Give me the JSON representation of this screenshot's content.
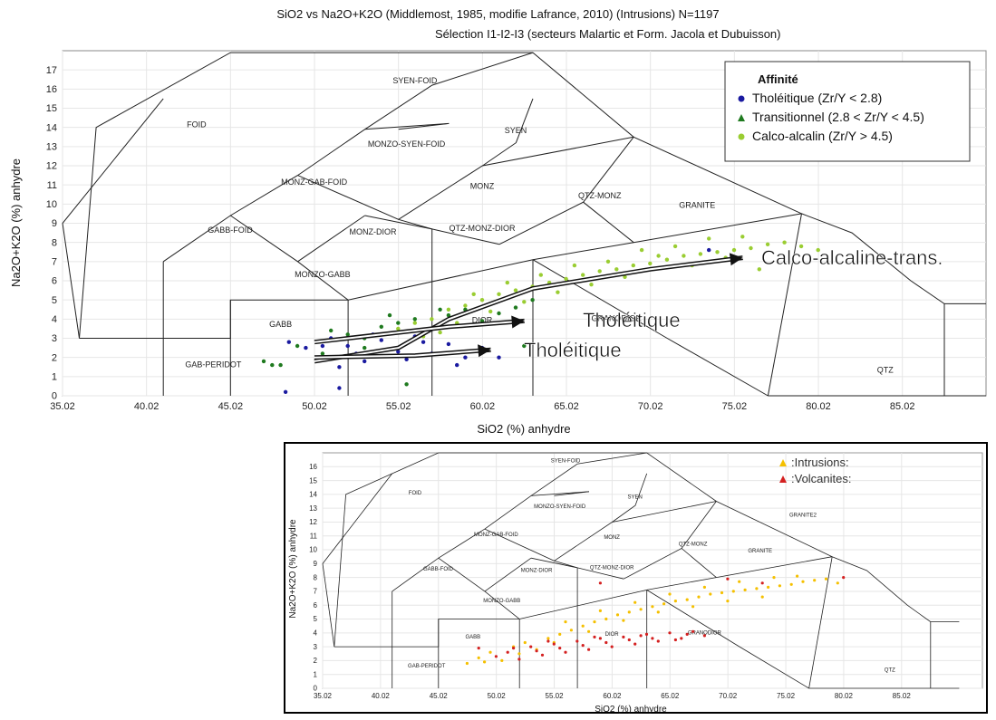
{
  "header": {
    "title": "SiO2 vs Na2O+K2O (Middlemost, 1985, modifie Lafrance, 2010) (Intrusions) N=1197",
    "subtitle": "Sélection I1-I2-I3 (secteurs Malartic et Form. Jacola et Dubuisson)"
  },
  "colors": {
    "tholeiitic": "#1a1aa0",
    "transitional": "#1f7a1f",
    "calc_alkaline": "#9acd32",
    "intrusions": "#f5c000",
    "volcanites": "#d42020"
  },
  "chart_data": [
    {
      "type": "scatter",
      "title": "SiO2 vs Na2O+K2O (Middlemost, 1985, modifie Lafrance, 2010) (Intrusions) N=1197",
      "subtitle": "Sélection I1-I2-I3 (secteurs Malartic et Form. Jacola et Dubuisson)",
      "xlabel": "SiO2 (%) anhydre",
      "ylabel": "Na2O+K2O (%) anhydre",
      "xlim": [
        35.02,
        90.0
      ],
      "ylim": [
        0,
        18
      ],
      "xticks": [
        "35.02",
        "40.02",
        "45.02",
        "50.02",
        "55.02",
        "60.02",
        "65.02",
        "70.02",
        "75.02",
        "80.02",
        "85.02"
      ],
      "yticks": [
        "0",
        "1",
        "2",
        "3",
        "4",
        "5",
        "6",
        "7",
        "8",
        "9",
        "10",
        "11",
        "12",
        "13",
        "14",
        "15",
        "16",
        "17"
      ],
      "legend": {
        "title": "Affinité",
        "position": "top-right",
        "entries": [
          "Tholéitique (Zr/Y < 2.8)",
          "Transitionnel (2.8 < Zr/Y < 4.5)",
          "Calco-alcalin (Zr/Y > 4.5)"
        ]
      },
      "field_labels": [
        {
          "text": "FOID",
          "x": 43.0,
          "y": 14.0
        },
        {
          "text": "SYEN-FOID",
          "x": 56.0,
          "y": 16.3
        },
        {
          "text": "MONZO-SYEN-FOID",
          "x": 55.5,
          "y": 13.0
        },
        {
          "text": "SYEN",
          "x": 62.0,
          "y": 13.7
        },
        {
          "text": "MONZ-GAB-FOID",
          "x": 50.0,
          "y": 11.0
        },
        {
          "text": "MONZ",
          "x": 60.0,
          "y": 10.8
        },
        {
          "text": "QTZ-MONZ",
          "x": 67.0,
          "y": 10.3
        },
        {
          "text": "GRANITE2",
          "x": 76.5,
          "y": 12.4
        },
        {
          "text": "GRANITE",
          "x": 72.8,
          "y": 9.8
        },
        {
          "text": "GABB-FOID",
          "x": 45.0,
          "y": 8.5
        },
        {
          "text": "MONZ-DIOR",
          "x": 53.5,
          "y": 8.4
        },
        {
          "text": "QTZ-MONZ-DIOR",
          "x": 60.0,
          "y": 8.6
        },
        {
          "text": "MONZO-GABB",
          "x": 50.5,
          "y": 6.2
        },
        {
          "text": "GABB",
          "x": 48.0,
          "y": 3.6
        },
        {
          "text": "DIOR",
          "x": 60.0,
          "y": 3.8
        },
        {
          "text": "GRANODIOR",
          "x": 68.0,
          "y": 3.9
        },
        {
          "text": "GAB-PERIDOT",
          "x": 44.0,
          "y": 1.5
        },
        {
          "text": "QTZ",
          "x": 84.0,
          "y": 1.2
        }
      ],
      "annotations": [
        "Calco-alcaline-trans.",
        "Tholéitique",
        "Tholéitique"
      ],
      "series": [
        {
          "name": "Tholéitique (Zr/Y < 2.8)",
          "color": "#1a1aa0",
          "points": [
            [
              48.5,
              2.8
            ],
            [
              49.5,
              2.5
            ],
            [
              50.2,
              2.0
            ],
            [
              51.0,
              3.0
            ],
            [
              52.0,
              2.6
            ],
            [
              53.0,
              1.8
            ],
            [
              54.0,
              2.9
            ],
            [
              55.0,
              2.3
            ],
            [
              56.0,
              3.1
            ],
            [
              57.0,
              2.2
            ],
            [
              58.0,
              2.7
            ],
            [
              59.0,
              2.0
            ],
            [
              60.0,
              2.5
            ],
            [
              61.0,
              2.0
            ],
            [
              52.5,
              2.2
            ],
            [
              51.5,
              1.5
            ],
            [
              48.3,
              0.2
            ],
            [
              51.5,
              0.4
            ],
            [
              73.5,
              7.6
            ],
            [
              56.5,
              2.8
            ],
            [
              55.5,
              1.9
            ],
            [
              53.5,
              3.2
            ],
            [
              50.5,
              2.6
            ],
            [
              58.5,
              1.6
            ]
          ]
        },
        {
          "name": "Transitionnel (2.8 < Zr/Y < 4.5)",
          "color": "#1f7a1f",
          "points": [
            [
              47.0,
              1.8
            ],
            [
              48.0,
              1.6
            ],
            [
              49.0,
              2.6
            ],
            [
              50.5,
              2.2
            ],
            [
              51.0,
              3.4
            ],
            [
              52.0,
              3.2
            ],
            [
              53.0,
              3.0
            ],
            [
              54.0,
              3.6
            ],
            [
              55.0,
              3.8
            ],
            [
              56.0,
              4.0
            ],
            [
              57.0,
              3.5
            ],
            [
              58.0,
              4.2
            ],
            [
              59.0,
              4.5
            ],
            [
              60.0,
              3.9
            ],
            [
              61.0,
              4.3
            ],
            [
              62.0,
              4.6
            ],
            [
              63.0,
              5.0
            ],
            [
              62.5,
              2.6
            ],
            [
              55.5,
              0.6
            ],
            [
              53.0,
              2.5
            ],
            [
              57.5,
              4.5
            ],
            [
              60.5,
              4.8
            ],
            [
              47.5,
              1.6
            ],
            [
              54.5,
              4.2
            ]
          ]
        },
        {
          "name": "Calco-alcalin (Zr/Y > 4.5)",
          "color": "#9acd32",
          "points": [
            [
              55.0,
              3.5
            ],
            [
              56.0,
              3.8
            ],
            [
              57.0,
              4.0
            ],
            [
              58.0,
              4.5
            ],
            [
              59.0,
              4.7
            ],
            [
              60.0,
              5.0
            ],
            [
              61.0,
              5.3
            ],
            [
              62.0,
              5.5
            ],
            [
              63.0,
              5.7
            ],
            [
              64.0,
              5.9
            ],
            [
              65.0,
              6.1
            ],
            [
              66.0,
              6.3
            ],
            [
              67.0,
              6.5
            ],
            [
              68.0,
              6.6
            ],
            [
              69.0,
              6.8
            ],
            [
              70.0,
              6.9
            ],
            [
              71.0,
              7.1
            ],
            [
              72.0,
              7.3
            ],
            [
              73.0,
              7.4
            ],
            [
              74.0,
              7.5
            ],
            [
              75.0,
              7.6
            ],
            [
              76.0,
              7.7
            ],
            [
              77.0,
              7.9
            ],
            [
              78.0,
              8.0
            ],
            [
              79.0,
              7.8
            ],
            [
              80.0,
              7.6
            ],
            [
              76.5,
              6.6
            ],
            [
              74.5,
              7.2
            ],
            [
              72.5,
              6.8
            ],
            [
              70.5,
              7.3
            ],
            [
              68.5,
              6.2
            ],
            [
              66.5,
              5.8
            ],
            [
              64.5,
              5.4
            ],
            [
              62.5,
              4.9
            ],
            [
              60.5,
              4.4
            ],
            [
              58.5,
              3.8
            ],
            [
              57.5,
              3.3
            ],
            [
              56.5,
              3.1
            ],
            [
              71.5,
              7.8
            ],
            [
              67.5,
              7.0
            ],
            [
              63.5,
              6.3
            ],
            [
              61.5,
              5.9
            ],
            [
              59.5,
              5.3
            ],
            [
              75.5,
              8.3
            ],
            [
              73.5,
              8.2
            ],
            [
              69.5,
              7.6
            ],
            [
              65.5,
              6.8
            ]
          ]
        }
      ]
    },
    {
      "type": "scatter",
      "xlabel": "SiO2 (%) anhydre",
      "ylabel": "Na2O+K2O (%) anhydre",
      "xlim": [
        35.02,
        92.0
      ],
      "ylim": [
        0,
        17
      ],
      "xticks": [
        "35.02",
        "40.02",
        "45.02",
        "50.02",
        "55.02",
        "60.02",
        "65.02",
        "70.02",
        "75.02",
        "80.02",
        "85.02"
      ],
      "yticks": [
        "0",
        "1",
        "2",
        "3",
        "4",
        "5",
        "6",
        "7",
        "8",
        "9",
        "10",
        "11",
        "12",
        "13",
        "14",
        "15",
        "16"
      ],
      "legend": {
        "position": "top-right",
        "entries": [
          ":Intrusions:",
          ":Volcanites:"
        ]
      },
      "series": [
        {
          "name": ":Intrusions:",
          "color": "#f5c000",
          "points": [
            [
              47.5,
              1.8
            ],
            [
              48.5,
              2.2
            ],
            [
              49.5,
              2.6
            ],
            [
              50.5,
              2.0
            ],
            [
              51.5,
              3.0
            ],
            [
              52.5,
              3.3
            ],
            [
              53.5,
              2.8
            ],
            [
              54.5,
              3.6
            ],
            [
              55.5,
              3.9
            ],
            [
              56.5,
              4.2
            ],
            [
              57.5,
              4.5
            ],
            [
              58.5,
              4.8
            ],
            [
              59.5,
              5.0
            ],
            [
              60.5,
              5.3
            ],
            [
              61.5,
              5.5
            ],
            [
              62.5,
              5.7
            ],
            [
              63.5,
              5.9
            ],
            [
              64.5,
              6.1
            ],
            [
              65.5,
              6.3
            ],
            [
              66.5,
              6.4
            ],
            [
              67.5,
              6.6
            ],
            [
              68.5,
              6.8
            ],
            [
              69.5,
              6.9
            ],
            [
              70.5,
              7.0
            ],
            [
              71.5,
              7.1
            ],
            [
              72.5,
              7.2
            ],
            [
              73.5,
              7.3
            ],
            [
              74.5,
              7.4
            ],
            [
              75.5,
              7.5
            ],
            [
              76.5,
              7.7
            ],
            [
              77.5,
              7.8
            ],
            [
              78.5,
              7.9
            ],
            [
              79.5,
              7.6
            ],
            [
              73.0,
              6.6
            ],
            [
              70.0,
              6.3
            ],
            [
              67.0,
              5.9
            ],
            [
              64.0,
              5.5
            ],
            [
              61.0,
              4.9
            ],
            [
              58.0,
              4.1
            ],
            [
              55.0,
              3.3
            ],
            [
              52.0,
              2.5
            ],
            [
              49.0,
              1.9
            ],
            [
              71.0,
              7.7
            ],
            [
              68.0,
              7.3
            ],
            [
              65.0,
              6.8
            ],
            [
              62.0,
              6.2
            ],
            [
              59.0,
              5.6
            ],
            [
              56.0,
              4.8
            ],
            [
              76.0,
              8.1
            ],
            [
              74.0,
              8.0
            ]
          ]
        },
        {
          "name": ":Volcanites:",
          "color": "#d42020",
          "points": [
            [
              48.5,
              2.9
            ],
            [
              50.0,
              2.3
            ],
            [
              51.0,
              2.6
            ],
            [
              52.0,
              2.1
            ],
            [
              53.0,
              3.0
            ],
            [
              54.0,
              2.4
            ],
            [
              55.0,
              3.2
            ],
            [
              56.0,
              2.6
            ],
            [
              57.0,
              3.4
            ],
            [
              58.0,
              2.8
            ],
            [
              59.0,
              3.6
            ],
            [
              60.0,
              3.0
            ],
            [
              61.0,
              3.7
            ],
            [
              62.0,
              3.2
            ],
            [
              63.0,
              3.9
            ],
            [
              64.0,
              3.4
            ],
            [
              65.0,
              4.0
            ],
            [
              66.0,
              3.6
            ],
            [
              67.0,
              4.1
            ],
            [
              68.0,
              3.8
            ],
            [
              53.5,
              2.7
            ],
            [
              55.5,
              2.9
            ],
            [
              57.5,
              3.1
            ],
            [
              59.5,
              3.3
            ],
            [
              61.5,
              3.5
            ],
            [
              63.5,
              3.6
            ],
            [
              66.5,
              3.9
            ],
            [
              70.0,
              7.9
            ],
            [
              73.0,
              7.6
            ],
            [
              80.0,
              8.0
            ],
            [
              59.0,
              7.6
            ],
            [
              51.5,
              2.9
            ],
            [
              54.5,
              3.4
            ],
            [
              58.5,
              3.7
            ],
            [
              62.5,
              3.8
            ],
            [
              65.5,
              3.5
            ]
          ]
        }
      ]
    }
  ]
}
